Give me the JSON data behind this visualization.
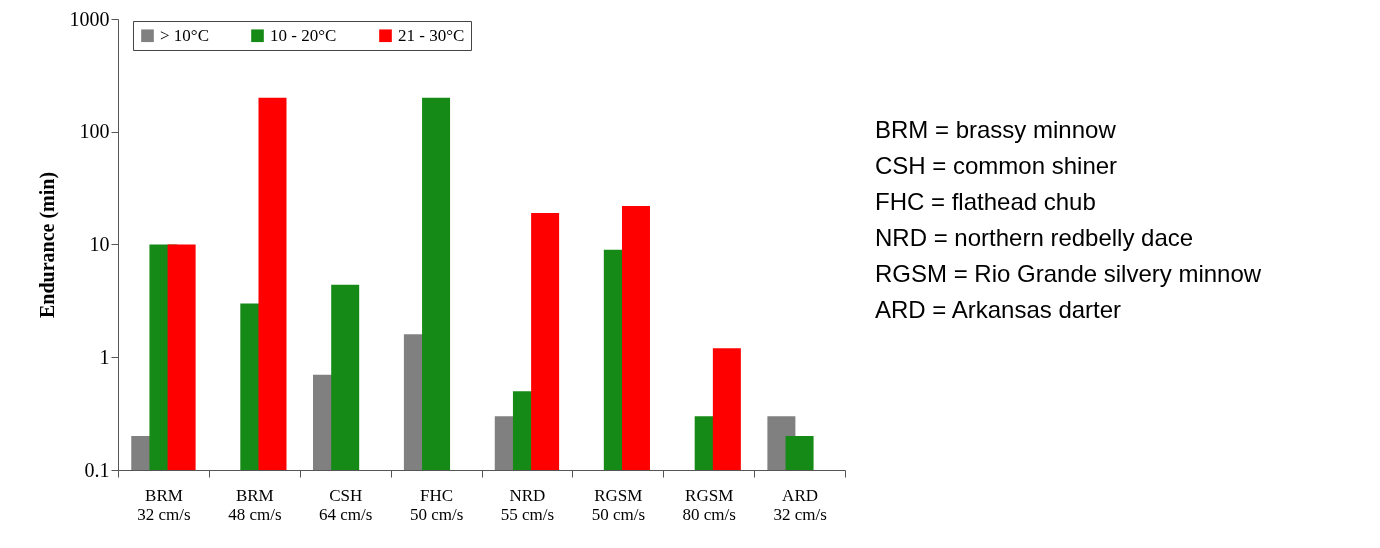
{
  "chart_data": {
    "type": "bar",
    "ylabel": "Endurance (min)",
    "categories": [
      "BRM 32 cm/s",
      "BRM 48 cm/s",
      "CSH 64 cm/s",
      "FHC 50 cm/s",
      "NRD 55 cm/s",
      "RGSM 50 cm/s",
      "RGSM 80 cm/s",
      "ARD 32 cm/s"
    ],
    "series": [
      {
        "name": "> 10°C",
        "color": "#808080",
        "values": [
          0.2,
          null,
          0.7,
          1.6,
          0.3,
          null,
          null,
          0.3
        ]
      },
      {
        "name": "10 - 20°C",
        "color": "#168a16",
        "values": [
          10,
          3,
          4.4,
          200,
          0.5,
          9,
          0.3,
          0.2
        ]
      },
      {
        "name": "21 - 30°C",
        "color": "#ff0000",
        "values": [
          10,
          200,
          null,
          null,
          19,
          22,
          1.2,
          null
        ]
      }
    ],
    "log": true,
    "ylim": [
      0.1,
      1000
    ],
    "yticks": [
      0.1,
      1,
      10,
      100,
      1000
    ],
    "grid": false,
    "legend": "top",
    "annotations": [
      "BRM = brassy minnow",
      "CSH = common shiner",
      "FHC = flathead chub",
      "NRD = northern redbelly dace",
      "RGSM = Rio Grande silvery minnow",
      "ARD = Arkansas darter"
    ]
  }
}
